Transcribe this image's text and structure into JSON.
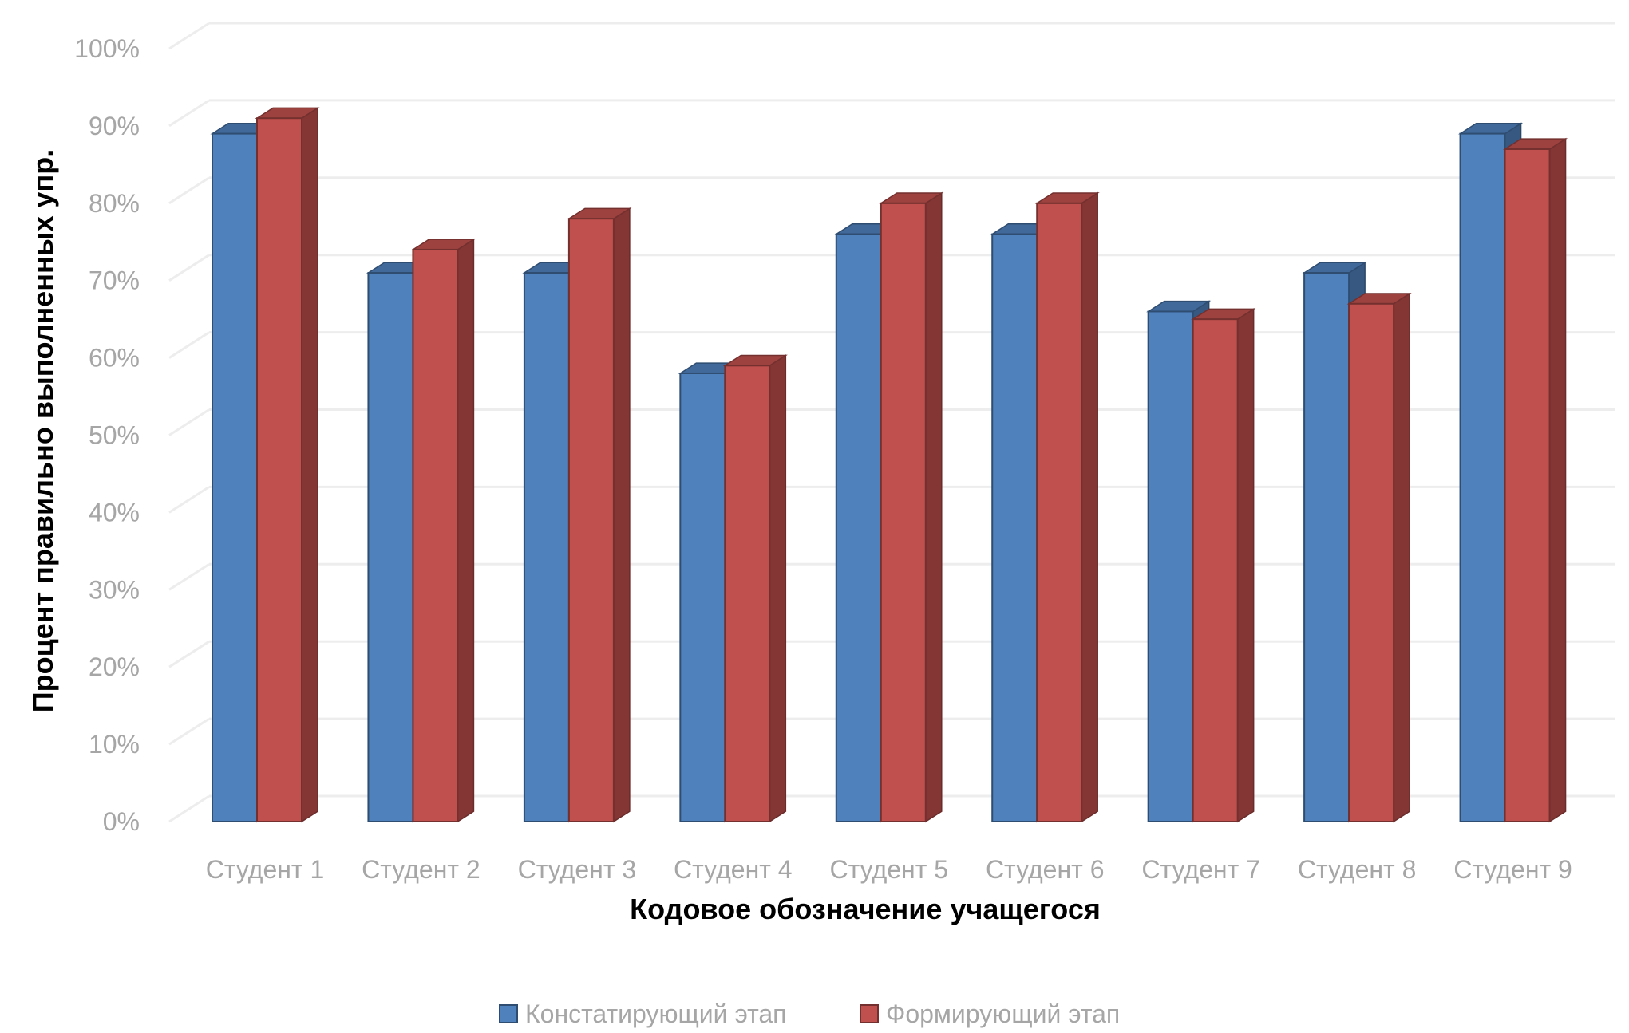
{
  "chart_data": {
    "type": "bar",
    "style": "3d-clustered-column",
    "categories": [
      "Студент 1",
      "Студент 2",
      "Студент 3",
      "Студент 4",
      "Студент 5",
      "Студент 6",
      "Студент 7",
      "Студент 8",
      "Студент 9"
    ],
    "series": [
      {
        "name": "Констатирующий этап",
        "color": "#4f81bd",
        "values": [
          89,
          71,
          71,
          58,
          76,
          76,
          66,
          71,
          89
        ]
      },
      {
        "name": "Формирующий этап",
        "color": "#c0504d",
        "values": [
          91,
          74,
          78,
          59,
          80,
          80,
          65,
          67,
          87
        ]
      }
    ],
    "y_ticks": [
      "0%",
      "10%",
      "20%",
      "30%",
      "40%",
      "50%",
      "60%",
      "70%",
      "80%",
      "90%",
      "100%"
    ],
    "ylim": [
      0,
      100
    ],
    "xlabel": "Кодовое обозначение учащегося",
    "ylabel": "Процент правильно выполненных упр.",
    "legend_position": "bottom",
    "grid": true
  }
}
